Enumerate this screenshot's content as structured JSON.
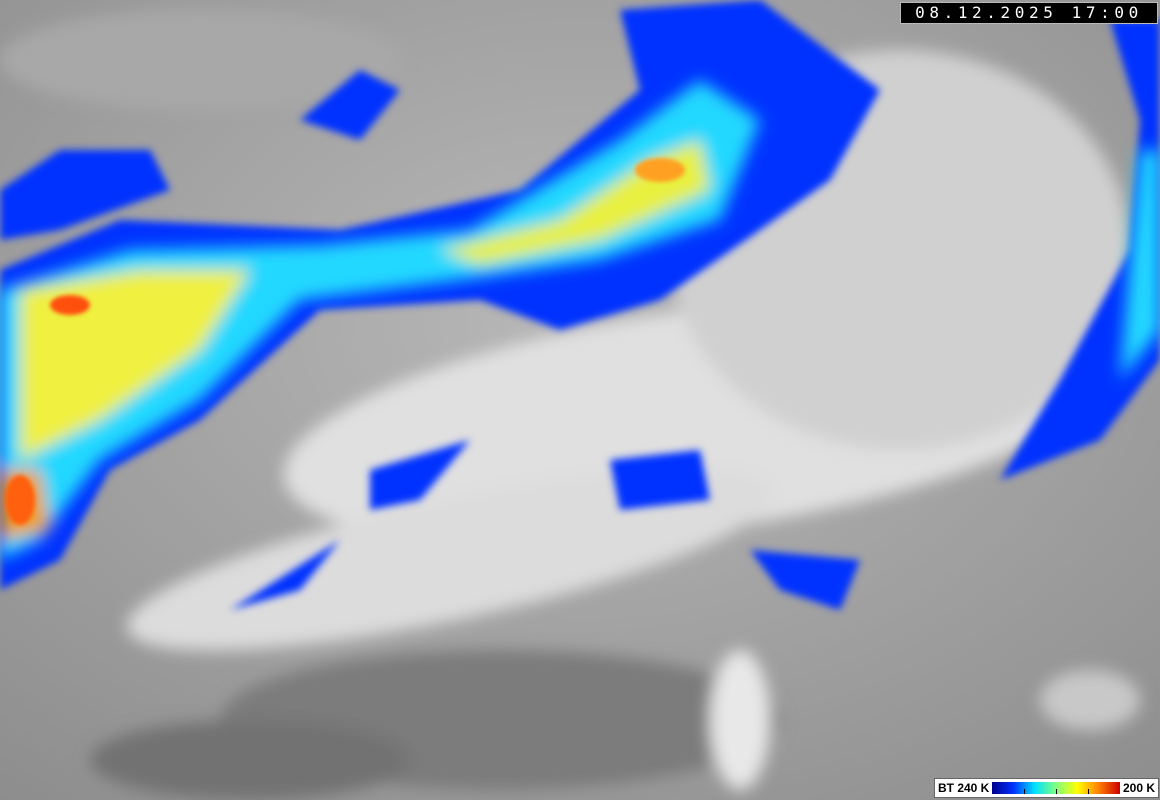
{
  "timestamp": "08.12.2025 17:00",
  "legend": {
    "min_label": "BT 240 K",
    "max_label": "200 K",
    "colormap": [
      "#00008c",
      "#0030ff",
      "#00e0ff",
      "#80ff80",
      "#ffff00",
      "#ff8000",
      "#cc0000"
    ]
  }
}
